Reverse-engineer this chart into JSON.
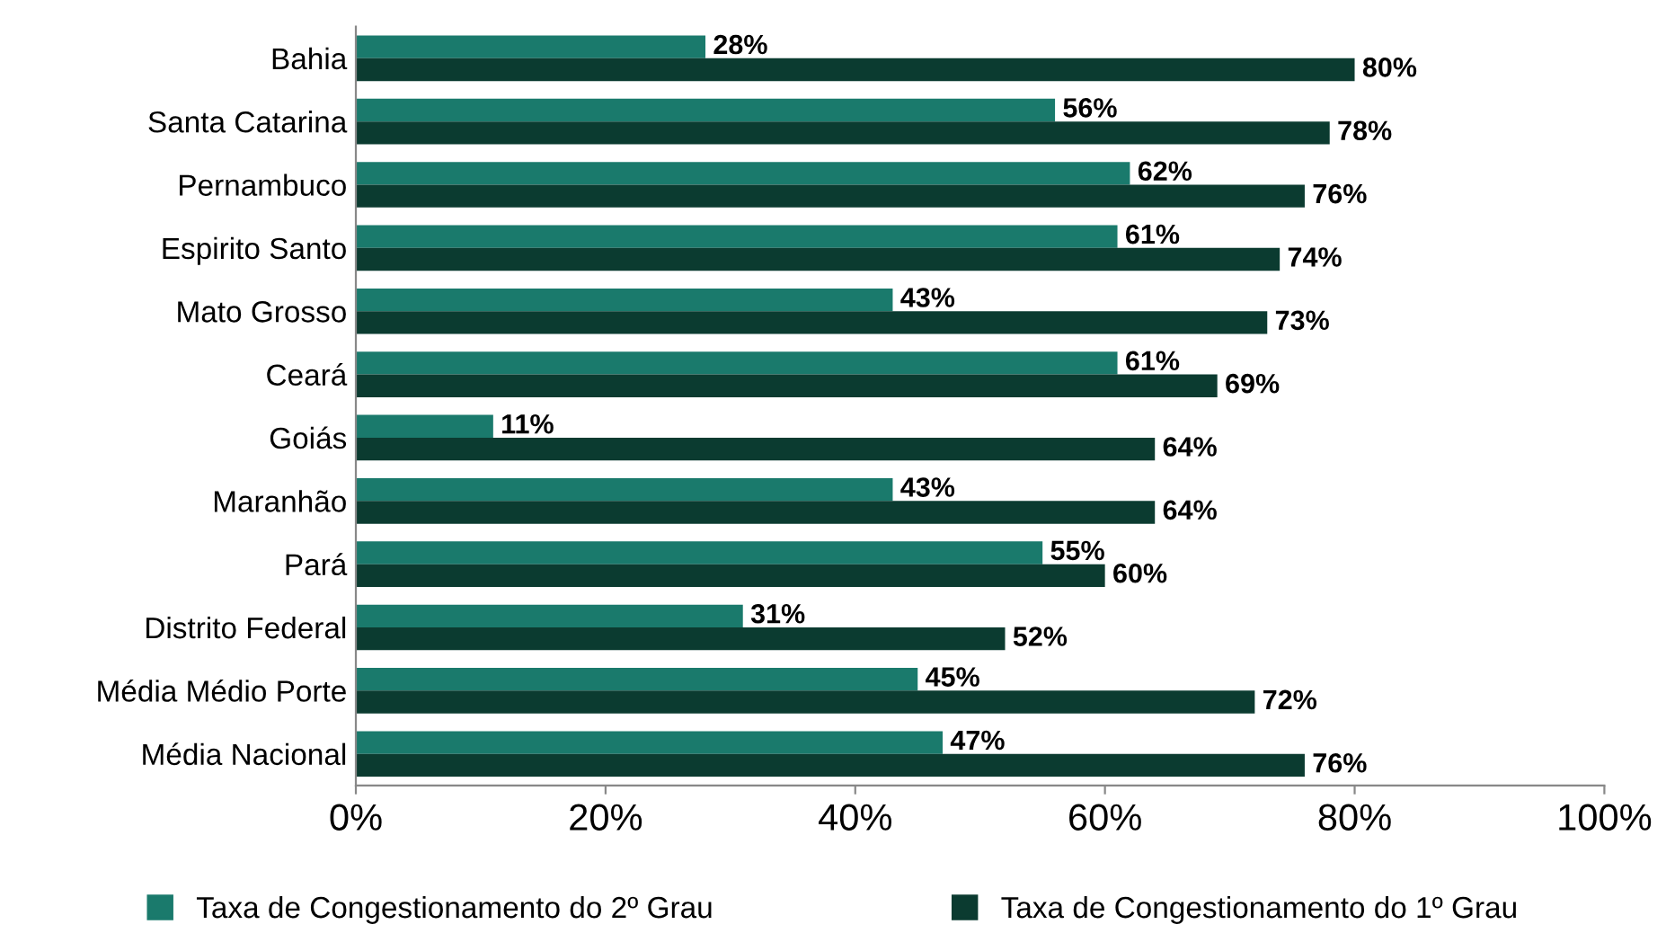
{
  "chart_data": {
    "type": "bar",
    "orientation": "horizontal",
    "categories": [
      "Bahia",
      "Santa Catarina",
      "Pernambuco",
      "Espirito Santo",
      "Mato Grosso",
      "Ceará",
      "Goiás",
      "Maranhão",
      "Pará",
      "Distrito Federal",
      "Média Médio Porte",
      "Média Nacional"
    ],
    "series": [
      {
        "name": "Taxa de Congestionamento do 2º Grau",
        "color": "#1a7a6c",
        "values": [
          28,
          56,
          62,
          61,
          43,
          61,
          11,
          43,
          55,
          31,
          45,
          47
        ],
        "value_labels": [
          "28%",
          "56%",
          "62%",
          "61%",
          "43%",
          "61%",
          "11%",
          "43%",
          "55%",
          "31%",
          "45%",
          "47%"
        ]
      },
      {
        "name": "Taxa de Congestionamento do 1º Grau",
        "color": "#0b3b30",
        "values": [
          80,
          78,
          76,
          74,
          73,
          69,
          64,
          64,
          60,
          52,
          72,
          76
        ],
        "value_labels": [
          "80%",
          "78%",
          "76%",
          "74%",
          "73%",
          "69%",
          "64%",
          "64%",
          "60%",
          "52%",
          "72%",
          "76%"
        ]
      }
    ],
    "xlim": [
      0,
      100
    ],
    "xticks": [
      {
        "value": 0,
        "label": "0%"
      },
      {
        "value": 20,
        "label": "20%"
      },
      {
        "value": 40,
        "label": "40%"
      },
      {
        "value": 60,
        "label": "60%"
      },
      {
        "value": 80,
        "label": "80%"
      },
      {
        "value": 100,
        "label": "100%"
      }
    ],
    "grid": false,
    "legend": "bottom"
  }
}
